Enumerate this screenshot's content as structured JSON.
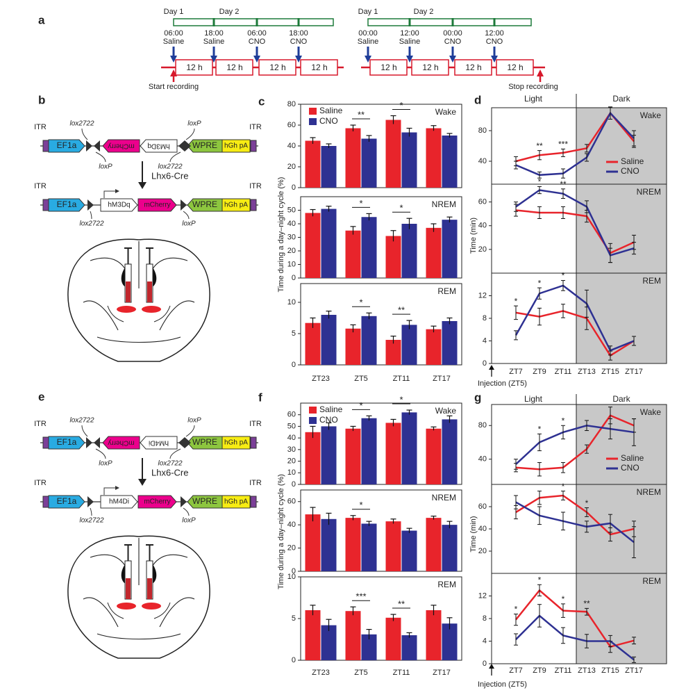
{
  "panel_a": {
    "label": "a",
    "schedules": [
      {
        "days": [
          "Day 1",
          "Day 2"
        ],
        "times": [
          "06:00",
          "18:00",
          "06:00",
          "18:00"
        ],
        "treatments": [
          "Saline",
          "Saline",
          "CNO",
          "CNO"
        ],
        "durations": [
          "12 h",
          "12 h",
          "12 h",
          "12 h"
        ],
        "recording": "Start recording"
      },
      {
        "days": [
          "Day 1",
          "Day 2"
        ],
        "times": [
          "00:00",
          "12:00",
          "00:00",
          "12:00"
        ],
        "treatments": [
          "Saline",
          "Saline",
          "CNO",
          "CNO"
        ],
        "durations": [
          "12 h",
          "12 h",
          "12 h",
          "12 h"
        ],
        "recording": "Stop recording"
      }
    ]
  },
  "panel_b": {
    "label": "b",
    "row1": {
      "parts": [
        "ITR",
        "EF1a",
        "mCherry",
        "hM3Dq",
        "WPRE",
        "hGh pA",
        "ITR"
      ],
      "sites": [
        "lox2722",
        "loxP",
        "lox2722",
        "loxP"
      ]
    },
    "cre": "Lhx6-Cre",
    "row2": {
      "parts": [
        "ITR",
        "EF1a",
        "hM3Dq",
        "mCherry",
        "WPRE",
        "hGh pA",
        "ITR"
      ],
      "sites": [
        "lox2722",
        "loxP"
      ]
    }
  },
  "panel_e": {
    "label": "e",
    "row1": {
      "parts": [
        "ITR",
        "EF1a",
        "mCherry",
        "hM4Di",
        "WPRE",
        "hGh pA",
        "ITR"
      ],
      "sites": [
        "lox2722",
        "loxP",
        "lox2722",
        "loxP"
      ]
    },
    "cre": "Lhx6-Cre",
    "row2": {
      "parts": [
        "ITR",
        "EF1a",
        "hM4Di",
        "mCherry",
        "WPRE",
        "hGh pA",
        "ITR"
      ],
      "sites": [
        "lox2722",
        "loxP"
      ]
    }
  },
  "chart_data": [
    {
      "type": "bar",
      "panel_label": "c",
      "ylabel": "Time during a day–night cycle (%)",
      "categories": [
        "ZT23",
        "ZT5",
        "ZT11",
        "ZT17"
      ],
      "series": [
        {
          "name": "Saline",
          "color": "#e8242b"
        },
        {
          "name": "CNO",
          "color": "#2e3192"
        }
      ],
      "subplots": [
        {
          "title": "Wake",
          "ylim": [
            0,
            80
          ],
          "yticks": [
            0,
            20,
            40,
            60,
            80
          ],
          "values": [
            [
              45,
              57,
              65,
              57
            ],
            [
              40,
              47,
              53,
              50
            ]
          ],
          "errors": [
            [
              3,
              3,
              4,
              2.5
            ],
            [
              2,
              3,
              4,
              2
            ]
          ],
          "significance": [
            null,
            "**",
            "*",
            null
          ]
        },
        {
          "title": "NREM",
          "ylim": [
            0,
            60
          ],
          "yticks": [
            0,
            10,
            20,
            30,
            40,
            50
          ],
          "values": [
            [
              48,
              35,
              31,
              37
            ],
            [
              51,
              45,
              40,
              43
            ]
          ],
          "errors": [
            [
              2.5,
              3,
              4,
              3
            ],
            [
              2,
              2.5,
              4,
              2
            ]
          ],
          "significance": [
            null,
            "*",
            "*",
            null
          ]
        },
        {
          "title": "REM",
          "ylim": [
            0,
            13
          ],
          "yticks": [
            0,
            5,
            10
          ],
          "values": [
            [
              6.7,
              5.8,
              4.0,
              5.7
            ],
            [
              8.0,
              7.8,
              6.4,
              7.0
            ]
          ],
          "errors": [
            [
              0.8,
              0.6,
              0.6,
              0.5
            ],
            [
              0.6,
              0.5,
              0.7,
              0.5
            ]
          ],
          "significance": [
            null,
            "*",
            "**",
            null
          ]
        }
      ]
    },
    {
      "type": "line",
      "panel_label": "d",
      "ylabel": "Time (min)",
      "xlabel": "Injection (ZT5)",
      "regions": [
        "Light",
        "Dark"
      ],
      "categories": [
        "ZT7",
        "ZT9",
        "ZT11",
        "ZT13",
        "ZT15",
        "ZT17"
      ],
      "series": [
        {
          "name": "Saline",
          "color": "#e8242b"
        },
        {
          "name": "CNO",
          "color": "#2e3192"
        }
      ],
      "subplots": [
        {
          "title": "Wake",
          "ylim": [
            10,
            110
          ],
          "yticks": [
            40,
            80
          ],
          "values": [
            [
              40,
              48,
              51,
              57,
              103,
              66
            ],
            [
              35,
              22,
              24,
              45,
              103,
              70
            ]
          ],
          "errors": [
            [
              6,
              6,
              5,
              5,
              8,
              8
            ],
            [
              5,
              4,
              6,
              5,
              8,
              10
            ]
          ],
          "significance": [
            null,
            "**",
            "***",
            null,
            null,
            null
          ]
        },
        {
          "title": "NREM",
          "ylim": [
            0,
            75
          ],
          "yticks": [
            20,
            40,
            60
          ],
          "values": [
            [
              53,
              51,
              51,
              48,
              17,
              26
            ],
            [
              56,
              70,
              67,
              56,
              15,
              21
            ]
          ],
          "errors": [
            [
              5,
              5,
              5,
              5,
              8,
              6
            ],
            [
              4,
              3,
              4,
              5,
              6,
              5
            ]
          ],
          "significance": [
            null,
            "*",
            "**",
            null,
            null,
            null
          ]
        },
        {
          "title": "REM",
          "ylim": [
            0,
            16
          ],
          "yticks": [
            0,
            4,
            8,
            12
          ],
          "values": [
            [
              9,
              8.3,
              9.3,
              8.0,
              1.4,
              4.0
            ],
            [
              5,
              12.4,
              13.8,
              10.6,
              2.3,
              4.0
            ]
          ],
          "errors": [
            [
              1.2,
              1.5,
              1.2,
              2,
              0.8,
              0.8
            ],
            [
              0.8,
              1,
              0.9,
              2.4,
              0.8,
              0.8
            ]
          ],
          "significance": [
            "*",
            "*",
            "*",
            null,
            null,
            null
          ]
        }
      ]
    },
    {
      "type": "bar",
      "panel_label": "f",
      "ylabel": "Time during a day–night cycle (%)",
      "categories": [
        "ZT23",
        "ZT5",
        "ZT11",
        "ZT17"
      ],
      "series": [
        {
          "name": "Saline",
          "color": "#e8242b"
        },
        {
          "name": "CNO",
          "color": "#2e3192"
        }
      ],
      "subplots": [
        {
          "title": "Wake",
          "ylim": [
            0,
            70
          ],
          "yticks": [
            0,
            10,
            20,
            30,
            40,
            50,
            60
          ],
          "values": [
            [
              45,
              48,
              53,
              48
            ],
            [
              50,
              57,
              62,
              56
            ]
          ],
          "errors": [
            [
              5,
              2,
              3,
              1.5
            ],
            [
              3,
              2,
              2,
              3
            ]
          ],
          "significance": [
            null,
            "*",
            "*",
            null
          ]
        },
        {
          "title": "NREM",
          "ylim": [
            0,
            70
          ],
          "yticks": [
            0,
            20,
            40,
            60
          ],
          "values": [
            [
              49,
              46,
              43,
              46
            ],
            [
              45,
              41,
              35,
              40
            ]
          ],
          "errors": [
            [
              6,
              2,
              2,
              1.5
            ],
            [
              5,
              2,
              2,
              3
            ]
          ],
          "significance": [
            null,
            "*",
            null,
            null
          ]
        },
        {
          "title": "REM",
          "ylim": [
            0,
            10
          ],
          "yticks": [
            0,
            5,
            10
          ],
          "values": [
            [
              6.0,
              5.9,
              5.1,
              6.0
            ],
            [
              4.2,
              3.1,
              3.0,
              4.4
            ]
          ],
          "errors": [
            [
              0.6,
              0.5,
              0.4,
              0.6
            ],
            [
              0.7,
              0.6,
              0.3,
              0.7
            ]
          ],
          "significance": [
            null,
            "***",
            "**",
            null
          ]
        }
      ]
    },
    {
      "type": "line",
      "panel_label": "g",
      "ylabel": "Time (min)",
      "xlabel": "Injection (ZT5)",
      "regions": [
        "Light",
        "Dark"
      ],
      "categories": [
        "ZT7",
        "ZT9",
        "ZT11",
        "ZT13",
        "ZT15",
        "ZT17"
      ],
      "series": [
        {
          "name": "Saline",
          "color": "#e8242b"
        },
        {
          "name": "CNO",
          "color": "#2e3192"
        }
      ],
      "subplots": [
        {
          "title": "Wake",
          "ylim": [
            10,
            105
          ],
          "yticks": [
            40,
            80
          ],
          "values": [
            [
              30,
              28,
              30,
              52,
              92,
              80
            ],
            [
              34,
              60,
              72,
              80,
              76,
              72
            ]
          ],
          "errors": [
            [
              5,
              8,
              6,
              5,
              10,
              8
            ],
            [
              6,
              10,
              8,
              6,
              12,
              16
            ]
          ],
          "significance": [
            null,
            "*",
            "*",
            null,
            null,
            null
          ]
        },
        {
          "title": "NREM",
          "ylim": [
            0,
            80
          ],
          "yticks": [
            20,
            40,
            60
          ],
          "values": [
            [
              55,
              68,
              70,
              55,
              35,
              40
            ],
            [
              64,
              52,
              47,
              42,
              45,
              28
            ]
          ],
          "errors": [
            [
              6,
              6,
              4,
              4,
              6,
              7
            ],
            [
              6,
              8,
              8,
              5,
              8,
              14
            ]
          ],
          "significance": [
            null,
            null,
            "*",
            "*",
            null,
            null
          ]
        },
        {
          "title": "REM",
          "ylim": [
            0,
            16
          ],
          "yticks": [
            0,
            4,
            8,
            12
          ],
          "values": [
            [
              7.8,
              13.0,
              9.4,
              9.2,
              3.0,
              4.1
            ],
            [
              4.3,
              8.5,
              5.0,
              4.0,
              4.0,
              0.7
            ]
          ],
          "errors": [
            [
              1,
              1,
              1.2,
              0.6,
              1,
              0.6
            ],
            [
              1,
              2,
              1.4,
              1.2,
              1,
              0.5
            ]
          ],
          "significance": [
            "*",
            "*",
            "*",
            "**",
            null,
            null
          ]
        }
      ]
    }
  ]
}
